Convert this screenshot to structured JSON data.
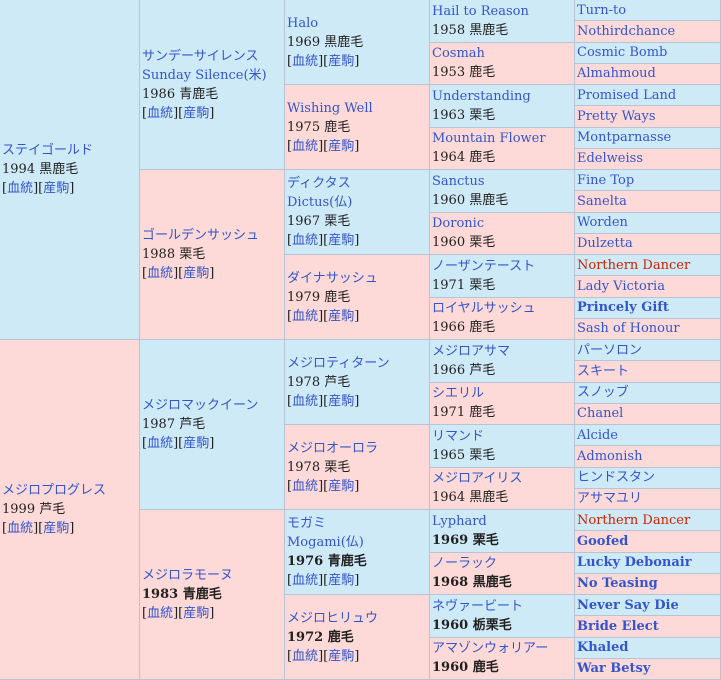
{
  "gen1": [
    {
      "name": "ステイゴールド",
      "detail": "1994 黒鹿毛",
      "links": [
        "血統",
        "産駒"
      ],
      "sex": "male"
    },
    {
      "name": "メジロプログレス",
      "detail": "1999 芦毛",
      "links": [
        "血統",
        "産駒"
      ],
      "sex": "female"
    }
  ],
  "gen2": [
    {
      "name": "サンデーサイレンス",
      "name2": "Sunday Silence(米)",
      "detail": "1986 青鹿毛",
      "links": [
        "血統",
        "産駒"
      ],
      "sex": "male"
    },
    {
      "name": "ゴールデンサッシュ",
      "detail": "1988 栗毛",
      "links": [
        "血統",
        "産駒"
      ],
      "sex": "female"
    },
    {
      "name": "メジロマックイーン",
      "detail": "1987 芦毛",
      "links": [
        "血統",
        "産駒"
      ],
      "sex": "male"
    },
    {
      "name": "メジロラモーヌ",
      "detail": "1983 青鹿毛",
      "links": [
        "血統",
        "産駒"
      ],
      "sex": "female"
    }
  ],
  "gen3": [
    {
      "name": "Halo",
      "detail": "1969 黒鹿毛",
      "links": [
        "血統",
        "産駒"
      ],
      "sex": "male"
    },
    {
      "name": "Wishing Well",
      "detail": "1975 鹿毛",
      "links": [
        "血統",
        "産駒"
      ],
      "sex": "female"
    },
    {
      "name": "ディクタス",
      "name2": "Dictus(仏)",
      "detail": "1967 栗毛",
      "links": [
        "血統",
        "産駒"
      ],
      "sex": "male"
    },
    {
      "name": "ダイナサッシュ",
      "detail": "1979 鹿毛",
      "links": [
        "血統",
        "産駒"
      ],
      "sex": "female"
    },
    {
      "name": "メジロティターン",
      "detail": "1978 芦毛",
      "links": [
        "血統",
        "産駒"
      ],
      "sex": "male"
    },
    {
      "name": "メジロオーロラ",
      "detail": "1978 栗毛",
      "links": [
        "血統",
        "産駒"
      ],
      "sex": "female"
    },
    {
      "name": "モガミ",
      "name2": "Mogami(仏)",
      "detail": "1976 青鹿毛",
      "links": [
        "血統",
        "産駒"
      ],
      "sex": "male"
    },
    {
      "name": "メジロヒリュウ",
      "detail": "1972 鹿毛",
      "links": [
        "血統",
        "産駒"
      ],
      "sex": "female"
    }
  ],
  "gen4": [
    {
      "name": "Hail to Reason",
      "detail": "1958 黒鹿毛",
      "sex": "male"
    },
    {
      "name": "Cosmah",
      "detail": "1953 鹿毛",
      "sex": "female"
    },
    {
      "name": "Understanding",
      "detail": "1963 栗毛",
      "sex": "male"
    },
    {
      "name": "Mountain Flower",
      "detail": "1964 鹿毛",
      "sex": "female"
    },
    {
      "name": "Sanctus",
      "detail": "1960 黒鹿毛",
      "sex": "male"
    },
    {
      "name": "Doronic",
      "detail": "1960 栗毛",
      "sex": "female"
    },
    {
      "name": "ノーザンテースト",
      "detail": "1971 栗毛",
      "sex": "male"
    },
    {
      "name": "ロイヤルサッシュ",
      "detail": "1966 鹿毛",
      "sex": "female"
    },
    {
      "name": "メジロアサマ",
      "detail": "1966 芦毛",
      "sex": "male"
    },
    {
      "name": "シエリル",
      "detail": "1971 鹿毛",
      "sex": "female"
    },
    {
      "name": "リマンド",
      "detail": "1965 栗毛",
      "sex": "male"
    },
    {
      "name": "メジロアイリス",
      "detail": "1964 黒鹿毛",
      "sex": "female"
    },
    {
      "name": "Lyphard",
      "detail": "1969 栗毛",
      "sex": "male"
    },
    {
      "name": "ノーラック",
      "detail": "1968 黒鹿毛",
      "sex": "female"
    },
    {
      "name": "ネヴァービート",
      "detail": "1960 栃栗毛",
      "sex": "male"
    },
    {
      "name": "アマゾンウォリアー",
      "detail": "1960 鹿毛",
      "sex": "female"
    }
  ],
  "gen5": [
    {
      "name": "Turn-to",
      "sex": "male"
    },
    {
      "name": "Nothirdchance",
      "sex": "female"
    },
    {
      "name": "Cosmic Bomb",
      "sex": "male"
    },
    {
      "name": "Almahmoud",
      "sex": "female"
    },
    {
      "name": "Promised Land",
      "sex": "male"
    },
    {
      "name": "Pretty Ways",
      "sex": "female"
    },
    {
      "name": "Montparnasse",
      "sex": "male"
    },
    {
      "name": "Edelweiss",
      "sex": "female"
    },
    {
      "name": "Fine Top",
      "sex": "male"
    },
    {
      "name": "Sanelta",
      "sex": "female"
    },
    {
      "name": "Worden",
      "sex": "male"
    },
    {
      "name": "Dulzetta",
      "sex": "female"
    },
    {
      "name": "Northern Dancer",
      "sex": "male",
      "highlight": true
    },
    {
      "name": "Lady Victoria",
      "sex": "female"
    },
    {
      "name": "Princely Gift",
      "sex": "male",
      "bold": true
    },
    {
      "name": "Sash of Honour",
      "sex": "female"
    },
    {
      "name": "パーソロン",
      "sex": "male"
    },
    {
      "name": "スキート",
      "sex": "female"
    },
    {
      "name": "スノッブ",
      "sex": "male"
    },
    {
      "name": "Chanel",
      "sex": "female"
    },
    {
      "name": "Alcide",
      "sex": "male"
    },
    {
      "name": "Admonish",
      "sex": "female"
    },
    {
      "name": "ヒンドスタン",
      "sex": "male"
    },
    {
      "name": "アサマユリ",
      "sex": "female"
    },
    {
      "name": "Northern Dancer",
      "sex": "male",
      "highlight": true
    },
    {
      "name": "Goofed",
      "sex": "female",
      "bold": true
    },
    {
      "name": "Lucky Debonair",
      "sex": "male",
      "bold": true
    },
    {
      "name": "No Teasing",
      "sex": "female",
      "bold": true
    },
    {
      "name": "Never Say Die",
      "sex": "male",
      "bold": true
    },
    {
      "name": "Bride Elect",
      "sex": "female",
      "bold": true
    },
    {
      "name": "Khaled",
      "sex": "male",
      "bold": true
    },
    {
      "name": "War Betsy",
      "sex": "female",
      "bold": true
    }
  ],
  "colors": {
    "male": "#cfeaf7",
    "female": "#fdd9d7",
    "link": "#3355cc",
    "highlight": "#cc2200"
  }
}
